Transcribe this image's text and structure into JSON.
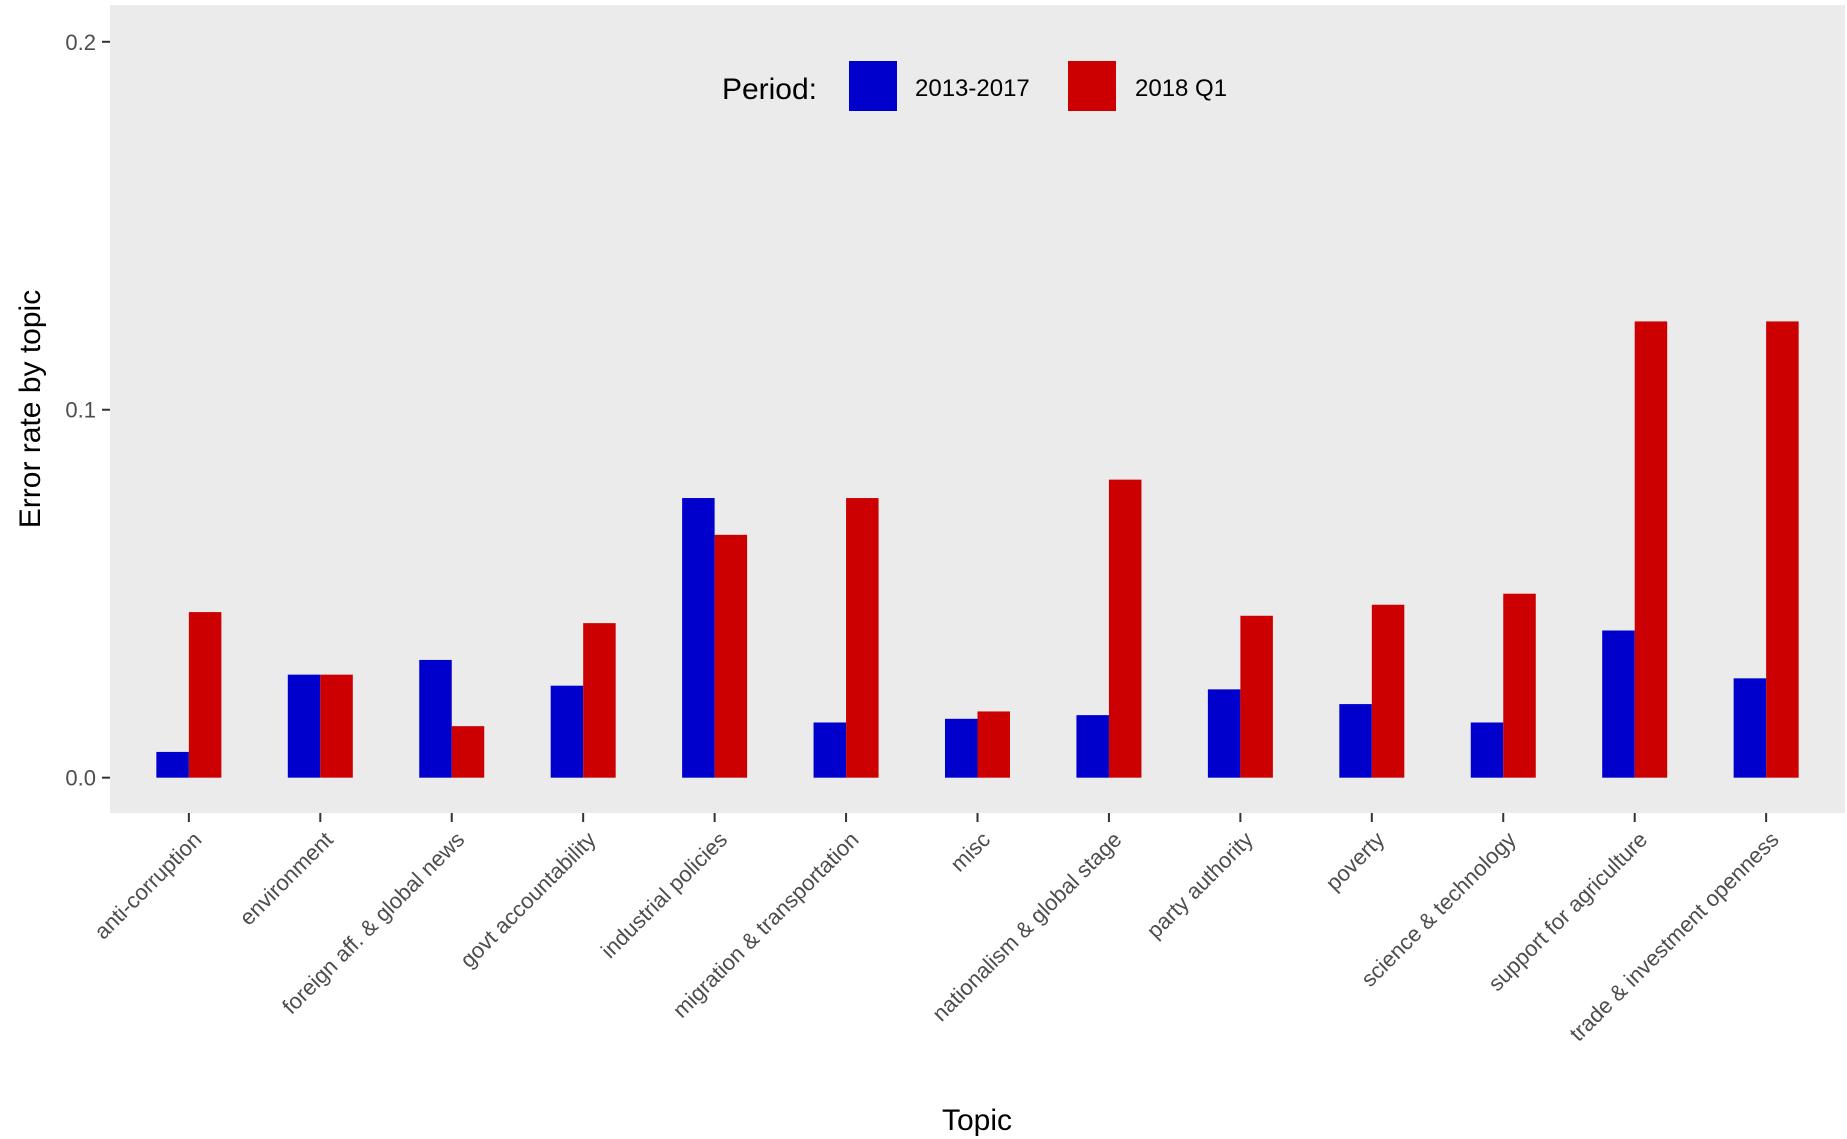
{
  "chart_data": {
    "type": "bar",
    "title": "",
    "xlabel": "Topic",
    "ylabel": "Error rate by topic",
    "ylim": [
      -0.0096,
      0.21
    ],
    "yticks": [
      0.0,
      0.1,
      0.2
    ],
    "ytick_labels": [
      "0.0",
      "0.1",
      "0.2"
    ],
    "grid": false,
    "legend": {
      "title": "Period:",
      "placement": "top-center",
      "entries": [
        "2013-2017",
        "2018 Q1"
      ]
    },
    "categories": [
      "anti-corruption",
      "environment",
      "foreign aff. & global news",
      "govt accountability",
      "industrial policies",
      "migration & transportation",
      "misc",
      "nationalism & global stage",
      "party authority",
      "poverty",
      "science & technology",
      "support for agriculture",
      "trade & investment openness"
    ],
    "series": [
      {
        "name": "2013-2017",
        "color": "#0000cc",
        "values": [
          0.007,
          0.028,
          0.032,
          0.025,
          0.076,
          0.015,
          0.016,
          0.017,
          0.024,
          0.02,
          0.015,
          0.04,
          0.027
        ]
      },
      {
        "name": "2018 Q1",
        "color": "#cc0000",
        "values": [
          0.045,
          0.028,
          0.014,
          0.042,
          0.066,
          0.076,
          0.018,
          0.081,
          0.044,
          0.047,
          0.05,
          0.124,
          0.124
        ]
      }
    ]
  },
  "colors": {
    "panel_background": "#ebebeb",
    "tick_color": "#333333",
    "tick_label_color": "#4d4d4d"
  }
}
